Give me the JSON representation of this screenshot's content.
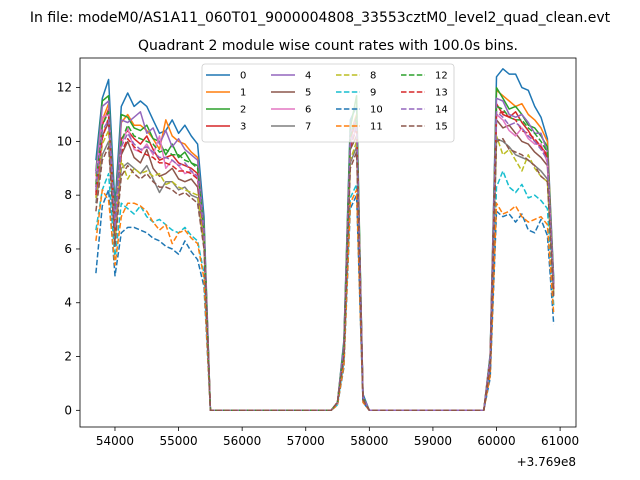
{
  "chart_data": {
    "type": "line",
    "suptitle": "In file: modeM0/AS1A11_060T01_9000004808_33553cztM0_level2_quad_clean.evt",
    "title": "Quadrant 2 module wise count rates with 100.0s bins.",
    "xlabel": "",
    "ylabel": "",
    "x_offset_label": "+3.769e8",
    "xlim": [
      53450,
      61250
    ],
    "ylim": [
      -0.62,
      13.1
    ],
    "xticks": [
      "54000",
      "55000",
      "56000",
      "57000",
      "58000",
      "59000",
      "60000",
      "61000"
    ],
    "yticks": [
      "0",
      "2",
      "4",
      "6",
      "8",
      "10",
      "12"
    ],
    "legend_position": "upper center",
    "legend_columns": 4,
    "x": [
      53700,
      53800,
      53900,
      54000,
      54100,
      54200,
      54300,
      54400,
      54500,
      54600,
      54700,
      54800,
      54900,
      55000,
      55100,
      55200,
      55300,
      55400,
      55500,
      55600,
      57400,
      57500,
      57600,
      57700,
      57800,
      57900,
      58000,
      58100,
      59800,
      59900,
      60000,
      60100,
      60200,
      60300,
      60400,
      60500,
      60600,
      60700,
      60800,
      60900
    ],
    "series": [
      {
        "name": "0",
        "color": "#1f77b4",
        "dash": "solid",
        "values": [
          9.3,
          11.6,
          12.3,
          7.6,
          11.3,
          11.8,
          11.3,
          11.5,
          11.3,
          10.8,
          10.3,
          10.4,
          10.8,
          10.3,
          10.6,
          10.2,
          9.9,
          7.2,
          0,
          0,
          0,
          0.3,
          2.6,
          10.8,
          11.3,
          0.6,
          0,
          0,
          0,
          2.1,
          12.4,
          12.7,
          12.5,
          12.5,
          12.0,
          11.9,
          11.3,
          10.9,
          10.1,
          4.9
        ]
      },
      {
        "name": "1",
        "color": "#ff7f0e",
        "dash": "solid",
        "values": [
          8.7,
          10.8,
          11.4,
          7.0,
          10.7,
          11.0,
          10.6,
          10.6,
          10.4,
          10.1,
          9.7,
          10.8,
          10.2,
          10.0,
          9.9,
          9.6,
          9.4,
          6.8,
          0,
          0,
          0,
          0.3,
          2.4,
          10.3,
          11.0,
          0.5,
          0,
          0,
          0,
          2.0,
          11.9,
          11.7,
          11.5,
          11.3,
          11.4,
          11.0,
          10.8,
          10.5,
          10.0,
          4.7
        ]
      },
      {
        "name": "2",
        "color": "#2ca02c",
        "dash": "solid",
        "values": [
          8.9,
          11.5,
          11.7,
          7.3,
          11.0,
          10.9,
          10.5,
          10.4,
          10.6,
          10.1,
          10.0,
          9.5,
          9.9,
          9.4,
          9.6,
          9.2,
          9.1,
          6.9,
          0,
          0,
          0,
          0.3,
          2.5,
          10.5,
          11.7,
          0.5,
          0,
          0,
          0,
          2.0,
          12.0,
          11.6,
          11.2,
          11.3,
          11.0,
          10.6,
          10.5,
          10.2,
          9.8,
          4.8
        ]
      },
      {
        "name": "3",
        "color": "#d62728",
        "dash": "solid",
        "values": [
          8.3,
          10.6,
          11.2,
          6.9,
          10.1,
          10.4,
          10.1,
          9.9,
          10.2,
          9.7,
          9.3,
          9.4,
          9.5,
          9.2,
          9.1,
          9.0,
          8.8,
          6.6,
          0,
          0,
          0,
          0.3,
          2.3,
          10.1,
          10.8,
          0.5,
          0,
          0,
          0,
          1.9,
          11.4,
          11.0,
          10.9,
          11.1,
          10.7,
          10.4,
          10.0,
          9.8,
          9.5,
          4.6
        ]
      },
      {
        "name": "4",
        "color": "#9467bd",
        "dash": "solid",
        "values": [
          8.8,
          11.3,
          11.5,
          7.1,
          10.8,
          10.7,
          10.9,
          11.1,
          10.3,
          10.5,
          9.9,
          10.4,
          9.8,
          10.1,
          9.7,
          9.5,
          9.3,
          6.8,
          0,
          0,
          0,
          0.3,
          2.4,
          10.3,
          10.9,
          0.5,
          0,
          0,
          0,
          2.0,
          11.6,
          11.5,
          11.0,
          10.9,
          11.0,
          10.7,
          10.3,
          10.3,
          9.6,
          4.7
        ]
      },
      {
        "name": "5",
        "color": "#8c564b",
        "dash": "solid",
        "values": [
          8.1,
          10.2,
          10.7,
          6.6,
          9.5,
          10.0,
          9.4,
          9.2,
          9.7,
          9.0,
          8.7,
          8.8,
          9.0,
          8.6,
          8.5,
          8.6,
          8.3,
          6.4,
          0,
          0,
          0,
          0.3,
          2.2,
          9.7,
          10.2,
          0.4,
          0,
          0,
          0,
          1.8,
          10.8,
          10.5,
          10.6,
          10.3,
          10.0,
          9.9,
          9.6,
          9.4,
          9.1,
          4.5
        ]
      },
      {
        "name": "6",
        "color": "#e377c2",
        "dash": "solid",
        "values": [
          8.5,
          10.9,
          11.0,
          6.9,
          9.9,
          10.5,
          9.7,
          9.6,
          9.9,
          9.5,
          10.2,
          9.0,
          9.3,
          9.1,
          8.8,
          8.9,
          8.6,
          6.6,
          0,
          0,
          0,
          0.3,
          2.3,
          9.9,
          10.5,
          0.5,
          0,
          0,
          0,
          1.9,
          11.0,
          10.8,
          10.4,
          10.2,
          10.5,
          10.1,
          9.9,
          9.9,
          9.2,
          4.6
        ]
      },
      {
        "name": "7",
        "color": "#7f7f7f",
        "dash": "solid",
        "values": [
          7.7,
          9.5,
          10.0,
          6.3,
          9.0,
          9.2,
          9.0,
          8.8,
          9.1,
          8.6,
          8.1,
          8.5,
          8.5,
          8.2,
          8.3,
          8.0,
          7.9,
          6.1,
          0,
          0,
          0,
          0.3,
          2.1,
          9.2,
          9.8,
          0.4,
          0,
          0,
          0,
          1.7,
          10.1,
          10.0,
          9.8,
          9.5,
          9.4,
          9.3,
          9.1,
          8.9,
          8.6,
          4.3
        ]
      },
      {
        "name": "8",
        "color": "#bcbd22",
        "dash": "dashed",
        "values": [
          7.9,
          9.9,
          10.4,
          6.5,
          9.3,
          8.6,
          9.0,
          8.8,
          8.9,
          8.7,
          8.8,
          8.4,
          8.5,
          8.3,
          8.2,
          8.1,
          8.0,
          6.2,
          0,
          0,
          0,
          0.3,
          2.1,
          9.3,
          10.0,
          0.4,
          0,
          0,
          0,
          1.7,
          10.2,
          9.5,
          9.7,
          9.3,
          8.9,
          9.5,
          9.0,
          8.7,
          8.5,
          4.3
        ]
      },
      {
        "name": "9",
        "color": "#17becf",
        "dash": "dashed",
        "values": [
          6.7,
          8.2,
          8.8,
          5.6,
          7.7,
          7.5,
          7.3,
          7.6,
          7.2,
          7.0,
          7.1,
          6.9,
          6.7,
          6.6,
          6.8,
          6.5,
          6.3,
          5.1,
          0,
          0,
          0,
          0.2,
          1.8,
          7.9,
          8.4,
          0.3,
          0,
          0,
          0,
          1.4,
          8.3,
          8.9,
          8.3,
          8.1,
          8.4,
          7.9,
          8.0,
          7.8,
          7.5,
          3.9
        ]
      },
      {
        "name": "10",
        "color": "#1f77b4",
        "dash": "dashed",
        "values": [
          5.1,
          7.6,
          8.2,
          5.0,
          6.6,
          6.8,
          6.8,
          6.7,
          6.6,
          6.4,
          6.3,
          6.1,
          6.0,
          5.8,
          6.3,
          5.9,
          5.6,
          4.6,
          0,
          0,
          0,
          0.2,
          1.6,
          7.5,
          8.0,
          0.3,
          0,
          0,
          0,
          1.2,
          7.4,
          7.2,
          7.3,
          7.0,
          7.3,
          6.7,
          6.6,
          7.1,
          6.5,
          3.2
        ]
      },
      {
        "name": "11",
        "color": "#ff7f0e",
        "dash": "dashed",
        "values": [
          6.3,
          8.2,
          7.8,
          5.4,
          7.2,
          7.7,
          7.7,
          7.6,
          7.4,
          7.0,
          6.7,
          6.9,
          6.2,
          6.6,
          6.7,
          6.4,
          6.2,
          4.9,
          0,
          0,
          0,
          0.2,
          1.7,
          7.7,
          8.2,
          0.3,
          0,
          0,
          0,
          1.3,
          7.7,
          7.3,
          7.4,
          7.6,
          7.2,
          7.0,
          7.1,
          7.2,
          6.9,
          3.6
        ]
      },
      {
        "name": "12",
        "color": "#2ca02c",
        "dash": "dashed",
        "values": [
          8.4,
          10.6,
          11.1,
          7.0,
          10.0,
          10.6,
          10.2,
          10.1,
          10.0,
          9.9,
          9.6,
          9.7,
          9.5,
          9.5,
          9.3,
          9.2,
          9.0,
          6.7,
          0,
          0,
          0,
          0.3,
          2.3,
          10.2,
          10.9,
          0.5,
          0,
          0,
          0,
          1.9,
          11.3,
          11.2,
          10.9,
          10.8,
          10.8,
          10.5,
          10.3,
          10.0,
          9.6,
          4.6
        ]
      },
      {
        "name": "13",
        "color": "#d62728",
        "dash": "dashed",
        "values": [
          8.0,
          10.1,
          10.9,
          6.7,
          9.6,
          10.1,
          9.8,
          9.6,
          9.5,
          9.4,
          9.2,
          9.2,
          9.1,
          8.9,
          8.9,
          8.8,
          8.6,
          6.5,
          0,
          0,
          0,
          0.3,
          2.2,
          9.8,
          10.5,
          0.4,
          0,
          0,
          0,
          1.8,
          11.0,
          11.1,
          10.9,
          10.8,
          10.4,
          10.3,
          10.1,
          9.8,
          9.4,
          4.5
        ]
      },
      {
        "name": "14",
        "color": "#9467bd",
        "dash": "dashed",
        "values": [
          8.2,
          10.4,
          10.8,
          6.8,
          9.8,
          10.3,
          9.9,
          9.7,
          9.8,
          9.6,
          9.4,
          9.4,
          9.3,
          9.1,
          9.2,
          8.9,
          8.7,
          6.6,
          0,
          0,
          0,
          0.3,
          2.3,
          9.9,
          10.6,
          0.5,
          0,
          0,
          0,
          1.8,
          11.1,
          10.9,
          10.6,
          10.7,
          10.5,
          10.2,
          10.0,
          9.7,
          9.3,
          4.6
        ]
      },
      {
        "name": "15",
        "color": "#8c564b",
        "dash": "dashed",
        "values": [
          7.4,
          9.3,
          9.8,
          6.1,
          8.7,
          9.1,
          8.8,
          8.6,
          8.8,
          8.5,
          8.3,
          8.3,
          8.2,
          8.0,
          8.1,
          7.9,
          7.7,
          6.0,
          0,
          0,
          0,
          0.3,
          2.0,
          9.0,
          9.6,
          0.4,
          0,
          0,
          0,
          1.6,
          10.0,
          10.1,
          9.7,
          9.6,
          9.5,
          9.3,
          9.1,
          8.7,
          8.5,
          4.2
        ]
      }
    ]
  }
}
